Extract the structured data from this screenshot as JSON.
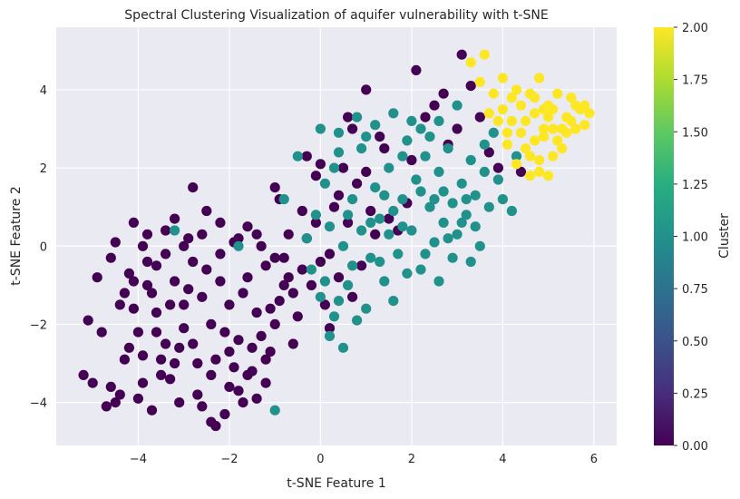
{
  "chart_data": {
    "type": "scatter",
    "title": "Spectral Clustering Visualization of aquifer vulnerability with t-SNE",
    "xlabel": "t-SNE Feature 1",
    "ylabel": "t-SNE Feature 2",
    "xlim": [
      -5.8,
      6.5
    ],
    "ylim": [
      -5.1,
      5.6
    ],
    "x_ticks": [
      -4,
      -2,
      0,
      2,
      4,
      6
    ],
    "x_tick_labels": [
      "−4",
      "−2",
      "0",
      "2",
      "4",
      "6"
    ],
    "y_ticks": [
      -4,
      -2,
      0,
      2,
      4
    ],
    "y_tick_labels": [
      "−4",
      "−2",
      "0",
      "2",
      "4"
    ],
    "grid": true,
    "background_color": "#eaeaf2",
    "colormap": "viridis",
    "colorbar": {
      "label": "Cluster",
      "range": [
        0.0,
        2.0
      ],
      "ticks": [
        0.0,
        0.25,
        0.5,
        0.75,
        1.0,
        1.25,
        1.5,
        1.75,
        2.0
      ],
      "tick_labels": [
        "0.00",
        "0.25",
        "0.50",
        "0.75",
        "1.00",
        "1.25",
        "1.50",
        "1.75",
        "2.00"
      ]
    },
    "clusters": [
      {
        "value": 0,
        "color": "#440154",
        "points": [
          [
            -5.2,
            -3.3
          ],
          [
            -5.0,
            -3.5
          ],
          [
            -5.1,
            -1.9
          ],
          [
            -4.9,
            -0.8
          ],
          [
            -4.8,
            -2.2
          ],
          [
            -4.7,
            -4.1
          ],
          [
            -4.6,
            -3.6
          ],
          [
            -4.5,
            -4.0
          ],
          [
            -4.4,
            -3.8
          ],
          [
            -4.6,
            -0.3
          ],
          [
            -4.5,
            0.1
          ],
          [
            -4.3,
            -1.2
          ],
          [
            -4.2,
            -2.6
          ],
          [
            -4.1,
            0.6
          ],
          [
            -4.0,
            -3.9
          ],
          [
            -3.9,
            0.0
          ],
          [
            -3.8,
            0.3
          ],
          [
            -3.7,
            -4.2
          ],
          [
            -3.6,
            -0.5
          ],
          [
            -3.5,
            -2.9
          ],
          [
            -3.4,
            0.4
          ],
          [
            -3.3,
            -3.4
          ],
          [
            -3.2,
            0.7
          ],
          [
            -3.1,
            -4.0
          ],
          [
            -3.0,
            -1.5
          ],
          [
            -2.9,
            0.2
          ],
          [
            -2.8,
            1.5
          ],
          [
            -2.7,
            -3.8
          ],
          [
            -2.6,
            -4.1
          ],
          [
            -2.5,
            0.9
          ],
          [
            -2.4,
            -4.5
          ],
          [
            -2.3,
            -4.6
          ],
          [
            -2.2,
            0.6
          ],
          [
            -2.1,
            -4.3
          ],
          [
            -2.0,
            -3.6
          ],
          [
            -1.9,
            0.1
          ],
          [
            -1.8,
            -3.7
          ],
          [
            -1.7,
            -4.0
          ],
          [
            -1.6,
            0.5
          ],
          [
            -1.5,
            -3.2
          ],
          [
            -1.4,
            -3.9
          ],
          [
            -1.3,
            0.0
          ],
          [
            -1.2,
            -3.5
          ],
          [
            -1.1,
            -2.7
          ],
          [
            -1.0,
            1.5
          ],
          [
            -0.9,
            1.2
          ],
          [
            -0.8,
            -1.0
          ],
          [
            -0.7,
            0.3
          ],
          [
            -0.6,
            -2.5
          ],
          [
            -0.5,
            -1.8
          ],
          [
            -4.4,
            -1.5
          ],
          [
            -4.2,
            -0.7
          ],
          [
            -4.0,
            -2.2
          ],
          [
            -3.8,
            -1.0
          ],
          [
            -3.6,
            -1.7
          ],
          [
            -3.4,
            -2.5
          ],
          [
            -3.2,
            -0.9
          ],
          [
            -3.0,
            -2.1
          ],
          [
            -2.8,
            -0.4
          ],
          [
            -2.6,
            -1.3
          ],
          [
            -2.4,
            -2.0
          ],
          [
            -2.2,
            -0.9
          ],
          [
            -2.0,
            -1.5
          ],
          [
            -1.8,
            -2.4
          ],
          [
            -1.6,
            -0.8
          ],
          [
            -1.4,
            -1.7
          ],
          [
            -1.2,
            -0.5
          ],
          [
            -1.0,
            -2.0
          ],
          [
            -0.8,
            -0.3
          ],
          [
            -0.6,
            -1.2
          ],
          [
            -3.9,
            -2.8
          ],
          [
            -3.5,
            -3.3
          ],
          [
            -3.1,
            -2.6
          ],
          [
            -2.7,
            -3.0
          ],
          [
            -2.3,
            -2.9
          ],
          [
            -1.9,
            -3.1
          ],
          [
            -1.5,
            -2.6
          ],
          [
            -1.1,
            -1.6
          ],
          [
            -3.7,
            -1.2
          ],
          [
            -3.3,
            -1.5
          ],
          [
            -2.9,
            -1.1
          ],
          [
            -2.5,
            -0.6
          ],
          [
            -2.1,
            -2.2
          ],
          [
            -1.7,
            -1.2
          ],
          [
            -1.3,
            -2.3
          ],
          [
            -0.9,
            -1.4
          ],
          [
            -0.4,
            -0.6
          ],
          [
            -0.3,
            0.2
          ],
          [
            -0.2,
            -1.0
          ],
          [
            -0.1,
            0.6
          ],
          [
            0.0,
            -0.4
          ],
          [
            0.1,
            -1.5
          ],
          [
            0.2,
            -0.2
          ],
          [
            0.3,
            1.0
          ],
          [
            0.4,
            -0.8
          ],
          [
            0.5,
            2.0
          ],
          [
            0.6,
            0.6
          ],
          [
            0.7,
            -1.3
          ],
          [
            0.8,
            1.6
          ],
          [
            0.9,
            -0.5
          ],
          [
            1.0,
            1.9
          ],
          [
            1.1,
            0.9
          ],
          [
            1.2,
            0.3
          ],
          [
            1.4,
            2.5
          ],
          [
            1.5,
            0.7
          ],
          [
            1.7,
            0.4
          ],
          [
            1.9,
            1.1
          ],
          [
            2.0,
            2.2
          ],
          [
            2.1,
            4.5
          ],
          [
            2.3,
            3.3
          ],
          [
            2.5,
            3.6
          ],
          [
            2.7,
            3.9
          ],
          [
            2.8,
            2.6
          ],
          [
            3.0,
            3.0
          ],
          [
            3.1,
            4.9
          ],
          [
            3.3,
            4.1
          ],
          [
            3.5,
            3.3
          ],
          [
            3.7,
            2.4
          ],
          [
            3.9,
            2.0
          ],
          [
            4.4,
            1.9
          ],
          [
            -0.3,
            2.3
          ],
          [
            0.0,
            2.1
          ],
          [
            -0.1,
            1.8
          ],
          [
            0.4,
            1.3
          ],
          [
            0.6,
            3.3
          ],
          [
            1.0,
            4.0
          ],
          [
            1.3,
            2.8
          ],
          [
            0.7,
            3.0
          ],
          [
            -0.4,
            0.9
          ],
          [
            0.2,
            -2.1
          ],
          [
            -4.3,
            -2.9
          ],
          [
            -3.9,
            -3.5
          ],
          [
            -4.1,
            -1.6
          ],
          [
            -3.6,
            -2.2
          ],
          [
            -3.2,
            -3.0
          ],
          [
            -2.8,
            -2.5
          ],
          [
            -2.4,
            -3.3
          ],
          [
            -2.0,
            -2.7
          ],
          [
            -1.6,
            -3.3
          ],
          [
            -1.2,
            -2.9
          ],
          [
            -3.4,
            -0.2
          ],
          [
            -3.0,
            0.0
          ],
          [
            -2.6,
            0.3
          ],
          [
            -2.2,
            -0.2
          ],
          [
            -1.8,
            0.2
          ],
          [
            -1.4,
            0.3
          ],
          [
            -1.0,
            -0.3
          ],
          [
            -0.7,
            -0.8
          ],
          [
            -3.8,
            -0.4
          ],
          [
            -4.1,
            -0.9
          ]
        ]
      },
      {
        "value": 1,
        "color": "#21918c",
        "points": [
          [
            -0.3,
            0.2
          ],
          [
            -0.2,
            -0.6
          ],
          [
            -0.1,
            0.8
          ],
          [
            0.0,
            -1.3
          ],
          [
            0.1,
            1.6
          ],
          [
            0.2,
            0.5
          ],
          [
            0.3,
            -1.8
          ],
          [
            0.4,
            2.4
          ],
          [
            0.5,
            0.0
          ],
          [
            0.6,
            -1.0
          ],
          [
            0.7,
            1.2
          ],
          [
            0.8,
            -1.9
          ],
          [
            0.9,
            0.4
          ],
          [
            1.0,
            2.8
          ],
          [
            1.1,
            -0.3
          ],
          [
            1.2,
            1.5
          ],
          [
            1.3,
            0.7
          ],
          [
            1.4,
            -0.9
          ],
          [
            1.5,
            2.0
          ],
          [
            1.6,
            0.9
          ],
          [
            1.7,
            -0.2
          ],
          [
            1.8,
            1.2
          ],
          [
            1.9,
            2.7
          ],
          [
            2.0,
            0.4
          ],
          [
            2.1,
            1.7
          ],
          [
            2.2,
            -0.6
          ],
          [
            2.3,
            2.3
          ],
          [
            2.4,
            1.0
          ],
          [
            2.5,
            0.1
          ],
          [
            2.6,
            1.9
          ],
          [
            2.7,
            0.6
          ],
          [
            2.8,
            2.5
          ],
          [
            2.9,
            1.1
          ],
          [
            3.0,
            0.3
          ],
          [
            3.1,
            1.6
          ],
          [
            3.2,
            0.8
          ],
          [
            3.3,
            2.2
          ],
          [
            3.4,
            1.3
          ],
          [
            3.5,
            0.0
          ],
          [
            3.6,
            2.6
          ],
          [
            3.7,
            1.0
          ],
          [
            3.8,
            2.9
          ],
          [
            3.9,
            1.7
          ],
          [
            4.0,
            1.2
          ],
          [
            4.2,
            0.9
          ],
          [
            4.3,
            2.3
          ],
          [
            3.0,
            3.6
          ],
          [
            2.6,
            3.2
          ],
          [
            2.2,
            3.0
          ],
          [
            1.8,
            2.3
          ],
          [
            0.0,
            3.0
          ],
          [
            0.4,
            2.9
          ],
          [
            0.8,
            3.3
          ],
          [
            1.2,
            3.1
          ],
          [
            1.6,
            3.4
          ],
          [
            2.0,
            3.2
          ],
          [
            -0.5,
            2.3
          ],
          [
            -0.8,
            1.2
          ],
          [
            -1.0,
            -4.2
          ],
          [
            -3.2,
            0.4
          ],
          [
            -1.8,
            0.0
          ],
          [
            0.2,
            -2.3
          ],
          [
            0.5,
            -2.6
          ],
          [
            1.0,
            -1.6
          ],
          [
            1.6,
            -1.4
          ],
          [
            2.6,
            -0.9
          ],
          [
            3.3,
            -0.4
          ],
          [
            2.9,
            -0.3
          ],
          [
            0.3,
            2.0
          ],
          [
            0.9,
            2.5
          ],
          [
            1.4,
            1.3
          ],
          [
            2.2,
            1.4
          ],
          [
            2.7,
            1.4
          ],
          [
            3.1,
            0.6
          ],
          [
            3.4,
            0.5
          ],
          [
            0.6,
            0.8
          ],
          [
            1.1,
            0.6
          ],
          [
            1.8,
            0.5
          ],
          [
            2.4,
            2.8
          ],
          [
            3.6,
            1.9
          ],
          [
            0.1,
            -0.9
          ],
          [
            0.7,
            -0.5
          ],
          [
            1.3,
            -0.4
          ],
          [
            1.9,
            -0.7
          ],
          [
            2.3,
            -0.2
          ],
          [
            0.4,
            -1.4
          ],
          [
            1.5,
            0.3
          ],
          [
            2.8,
            0.2
          ],
          [
            3.2,
            1.2
          ],
          [
            2.5,
            1.2
          ]
        ]
      },
      {
        "value": 2,
        "color": "#fde725",
        "points": [
          [
            3.3,
            4.7
          ],
          [
            3.6,
            4.9
          ],
          [
            3.5,
            4.2
          ],
          [
            3.8,
            3.9
          ],
          [
            4.0,
            4.3
          ],
          [
            4.2,
            3.8
          ],
          [
            4.4,
            3.6
          ],
          [
            4.5,
            3.2
          ],
          [
            4.6,
            3.9
          ],
          [
            4.7,
            3.4
          ],
          [
            4.8,
            4.3
          ],
          [
            4.9,
            2.8
          ],
          [
            5.0,
            3.6
          ],
          [
            5.1,
            3.0
          ],
          [
            5.2,
            3.9
          ],
          [
            5.3,
            2.5
          ],
          [
            5.4,
            3.3
          ],
          [
            5.5,
            3.8
          ],
          [
            5.6,
            3.0
          ],
          [
            5.7,
            3.5
          ],
          [
            5.8,
            3.6
          ],
          [
            5.9,
            3.4
          ],
          [
            3.9,
            3.2
          ],
          [
            4.1,
            2.6
          ],
          [
            4.3,
            2.1
          ],
          [
            4.6,
            1.8
          ],
          [
            4.8,
            2.2
          ],
          [
            5.0,
            1.8
          ],
          [
            5.1,
            2.3
          ],
          [
            5.3,
            3.0
          ],
          [
            4.9,
            3.0
          ],
          [
            4.7,
            2.7
          ],
          [
            4.5,
            2.5
          ],
          [
            4.4,
            2.9
          ],
          [
            5.2,
            2.7
          ],
          [
            5.4,
            2.9
          ],
          [
            5.6,
            3.6
          ],
          [
            5.8,
            3.1
          ],
          [
            4.2,
            3.2
          ],
          [
            4.0,
            3.5
          ],
          [
            4.6,
            2.3
          ],
          [
            4.8,
            1.9
          ],
          [
            5.0,
            3.3
          ],
          [
            4.3,
            4.0
          ],
          [
            4.7,
            3.8
          ],
          [
            5.1,
            3.5
          ],
          [
            5.5,
            3.2
          ],
          [
            4.1,
            2.9
          ],
          [
            3.7,
            3.4
          ],
          [
            4.9,
            3.5
          ]
        ]
      }
    ]
  }
}
